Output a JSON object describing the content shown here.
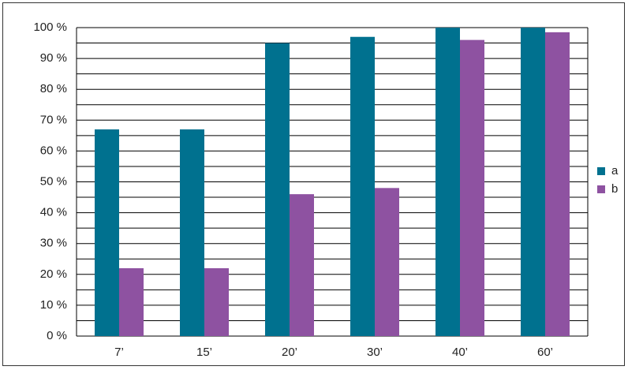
{
  "chart_data": {
    "type": "bar",
    "categories": [
      "7’",
      "15’",
      "20’",
      "30’",
      "40’",
      "60’"
    ],
    "series": [
      {
        "name": "a",
        "color": "#00718f",
        "values": [
          67,
          67,
          95,
          97,
          100,
          100
        ]
      },
      {
        "name": "b",
        "color": "#8e52a1",
        "values": [
          22,
          22,
          46,
          48,
          96,
          98.5
        ]
      }
    ],
    "ylim": [
      0,
      100
    ],
    "yticks": [
      {
        "value": 0,
        "label": "0 %"
      },
      {
        "value": 10,
        "label": "10 %"
      },
      {
        "value": 20,
        "label": "20 %"
      },
      {
        "value": 30,
        "label": "30 %"
      },
      {
        "value": 40,
        "label": "40 %"
      },
      {
        "value": 50,
        "label": "50 %"
      },
      {
        "value": 60,
        "label": "60 %"
      },
      {
        "value": 70,
        "label": "70 %"
      },
      {
        "value": 80,
        "label": "80 %"
      },
      {
        "value": 90,
        "label": "90 %"
      },
      {
        "value": 100,
        "label": "100 %"
      }
    ],
    "minor_yticks": [
      5,
      15,
      25,
      35,
      45,
      55,
      65,
      75,
      85,
      95
    ],
    "grid": true,
    "legend": "right"
  }
}
